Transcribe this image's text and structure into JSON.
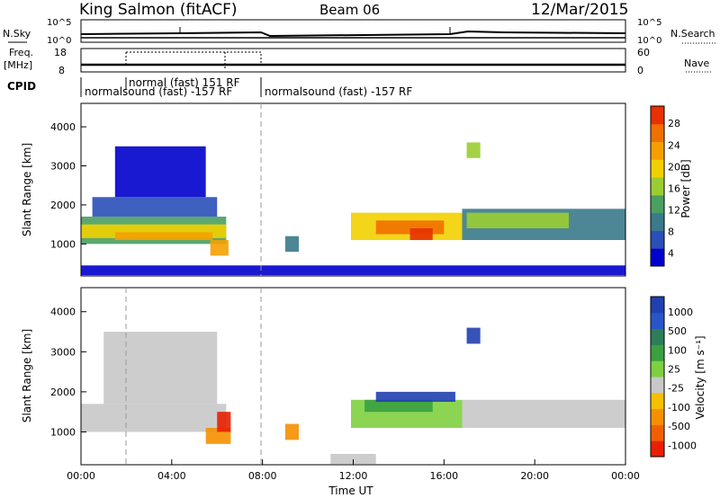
{
  "header": {
    "station": "King Salmon (fitACF)",
    "beam": "Beam 06",
    "date": "12/Mar/2015"
  },
  "top_panels": {
    "nsky_label": "N.Sky",
    "nsearch_label": "N.Search",
    "freq_label_line1": "Freq.",
    "freq_label_line2": "[MHz]",
    "nave_label": "Nave",
    "cpid_label": "CPID",
    "noise_left_ticks": [
      "10^5",
      "10^0"
    ],
    "noise_right_ticks": [
      "10^5",
      "10^0"
    ],
    "freq_ticks": [
      "18",
      "8"
    ],
    "nave_ticks": [
      "60",
      "0"
    ],
    "cpid_segments": [
      {
        "start_hour": 0,
        "end_hour": 8,
        "line1": "normal (fast) 151 RF",
        "line2": "normalsound (fast) -157 RF"
      },
      {
        "start_hour": 8,
        "end_hour": 24,
        "line1": "",
        "line2": "normalsound (fast) -157 RF"
      }
    ]
  },
  "colors": {
    "power_scale": [
      "#0000cc",
      "#2a4fb8",
      "#3a7a8a",
      "#4aa060",
      "#9acd32",
      "#f2d000",
      "#f5a000",
      "#f07000",
      "#e83000"
    ],
    "velocity_scale": [
      "#2040b0",
      "#2a55c8",
      "#2e7d5a",
      "#3aa040",
      "#7ed040",
      "#c8c8c8",
      "#f5c000",
      "#f59000",
      "#f06000",
      "#e82000"
    ]
  },
  "chart_data": [
    {
      "type": "heatmap",
      "name": "power",
      "ylabel": "Slant Range [km]",
      "colorbar_label": "Power [dB]",
      "colorbar_ticks": [
        "28",
        "24",
        "20",
        "16",
        "12",
        "8",
        "4"
      ],
      "y_ticks": [
        "4000",
        "3000",
        "2000",
        "1000"
      ],
      "ylim": [
        180,
        4600
      ],
      "xlim_hours": [
        0,
        24
      ],
      "regions": [
        {
          "t0": 0.0,
          "t1": 6.4,
          "r0": 1000,
          "r1": 1700,
          "level": 3
        },
        {
          "t0": 0.0,
          "t1": 6.4,
          "r0": 1150,
          "r1": 1500,
          "level": 5
        },
        {
          "t0": 1.5,
          "t1": 5.8,
          "r0": 1100,
          "r1": 1300,
          "level": 6
        },
        {
          "t0": 0.5,
          "t1": 6.0,
          "r0": 1700,
          "r1": 2200,
          "level": 1
        },
        {
          "t0": 1.5,
          "t1": 5.5,
          "r0": 2200,
          "r1": 3500,
          "level": 0
        },
        {
          "t0": 5.7,
          "t1": 6.5,
          "r0": 700,
          "r1": 1100,
          "level": 6
        },
        {
          "t0": 11.9,
          "t1": 16.8,
          "r0": 1100,
          "r1": 1800,
          "level": 5
        },
        {
          "t0": 13.0,
          "t1": 16.0,
          "r0": 1250,
          "r1": 1600,
          "level": 7
        },
        {
          "t0": 14.5,
          "t1": 15.5,
          "r0": 1100,
          "r1": 1400,
          "level": 8
        },
        {
          "t0": 16.8,
          "t1": 24.0,
          "r0": 1100,
          "r1": 1900,
          "level": 2
        },
        {
          "t0": 17.0,
          "t1": 21.5,
          "r0": 1400,
          "r1": 1800,
          "level": 4
        },
        {
          "t0": 17.0,
          "t1": 17.6,
          "r0": 3200,
          "r1": 3600,
          "level": 4
        },
        {
          "t0": 9.0,
          "t1": 9.6,
          "r0": 800,
          "r1": 1200,
          "level": 2
        },
        {
          "t0": 0.0,
          "t1": 24.0,
          "r0": 200,
          "r1": 450,
          "level": 0
        }
      ]
    },
    {
      "type": "heatmap",
      "name": "velocity",
      "ylabel": "Slant Range [km]",
      "xlabel": "Time UT",
      "colorbar_label": "Velocity [m s⁻¹]",
      "colorbar_ticks": [
        "1000",
        "500",
        "100",
        "25",
        "-25",
        "-100",
        "-500",
        "-1000"
      ],
      "y_ticks": [
        "4000",
        "3000",
        "2000",
        "1000"
      ],
      "x_ticks": [
        "00:00",
        "04:00",
        "08:00",
        "12:00",
        "16:00",
        "20:00",
        "00:00"
      ],
      "ylim": [
        180,
        4600
      ],
      "xlim_hours": [
        0,
        24
      ],
      "regions": [
        {
          "t0": 0.0,
          "t1": 6.4,
          "r0": 1000,
          "r1": 1700,
          "level": 5
        },
        {
          "t0": 1.0,
          "t1": 6.0,
          "r0": 1700,
          "r1": 3500,
          "level": 5
        },
        {
          "t0": 5.5,
          "t1": 6.6,
          "r0": 700,
          "r1": 1100,
          "level": 7
        },
        {
          "t0": 6.0,
          "t1": 6.6,
          "r0": 1000,
          "r1": 1500,
          "level": 9
        },
        {
          "t0": 11.9,
          "t1": 16.8,
          "r0": 1100,
          "r1": 1800,
          "level": 4
        },
        {
          "t0": 12.5,
          "t1": 15.5,
          "r0": 1500,
          "r1": 1800,
          "level": 3
        },
        {
          "t0": 13.0,
          "t1": 16.5,
          "r0": 1750,
          "r1": 2000,
          "level": 0
        },
        {
          "t0": 16.8,
          "t1": 24.0,
          "r0": 1100,
          "r1": 1800,
          "level": 5
        },
        {
          "t0": 17.0,
          "t1": 17.6,
          "r0": 3200,
          "r1": 3600,
          "level": 0
        },
        {
          "t0": 9.0,
          "t1": 9.6,
          "r0": 800,
          "r1": 1200,
          "level": 7
        },
        {
          "t0": 11.0,
          "t1": 13.0,
          "r0": 200,
          "r1": 450,
          "level": 5
        }
      ]
    }
  ]
}
